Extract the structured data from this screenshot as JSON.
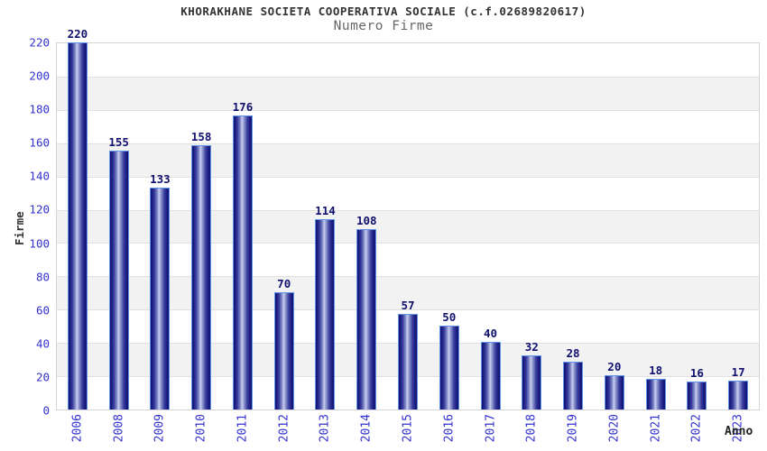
{
  "chart_data": {
    "type": "bar",
    "title": "KHORAKHANE SOCIETA COOPERATIVA SOCIALE (c.f.02689820617)",
    "subtitle": "Numero Firme",
    "xlabel": "Anno",
    "ylabel": "Firme",
    "categories": [
      "2006",
      "2008",
      "2009",
      "2010",
      "2011",
      "2012",
      "2013",
      "2014",
      "2015",
      "2016",
      "2017",
      "2018",
      "2019",
      "2020",
      "2021",
      "2022",
      "2023"
    ],
    "values": [
      220,
      155,
      133,
      158,
      176,
      70,
      114,
      108,
      57,
      50,
      40,
      32,
      28,
      20,
      18,
      16,
      17
    ],
    "ylim": [
      0,
      220
    ],
    "ytick_step": 20,
    "grid": true,
    "legend": "none",
    "colors": {
      "bar_dark": "#14146e",
      "bar_light": "#c9cdee",
      "bar_border": "#5f93e8",
      "axis_text": "#3232cd",
      "value_label": "#10106e",
      "title_text": "#333333",
      "subtitle_text": "#666666",
      "band_gray": "#f2f2f2",
      "gridline": "#e0e0e0",
      "frame": "#d5d5d5",
      "background": "#ffffff"
    }
  }
}
